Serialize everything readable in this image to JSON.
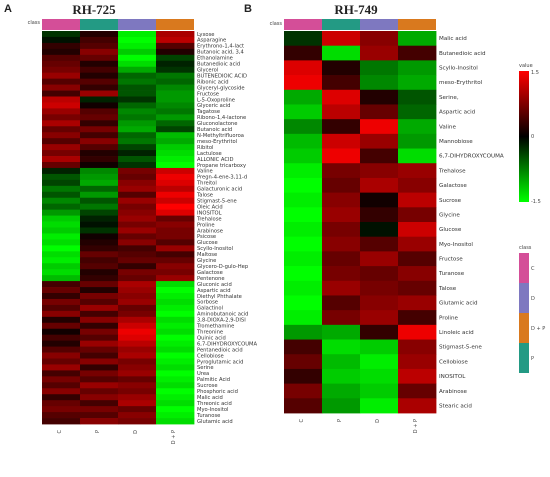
{
  "colors": {
    "low": "#00ff00",
    "mid": "#000000",
    "high": "#ff0000"
  },
  "legend": {
    "value_title": "value",
    "value_ticks": [
      "1.5",
      "0",
      "-1.5"
    ],
    "class_title": "class",
    "class_items": [
      {
        "label": "C",
        "color": "#d44e98"
      },
      {
        "label": "D",
        "color": "#7e78c0"
      },
      {
        "label": "D + P",
        "color": "#d9791e"
      },
      {
        "label": "P",
        "color": "#239a84"
      }
    ]
  },
  "chart_data": [
    {
      "type": "heatmap",
      "panel": "A",
      "title": "RH-725",
      "class_label": "class",
      "columns": [
        "C",
        "P",
        "D",
        "D + P"
      ],
      "column_colors": [
        "#d44e98",
        "#239a84",
        "#7e78c0",
        "#d9791e"
      ],
      "vmin": -1.5,
      "vmax": 1.5,
      "rows": [
        {
          "name": "Lyxose",
          "values": [
            -0.3,
            0.2,
            -1.4,
            1.0
          ]
        },
        {
          "name": "Asparagine",
          "values": [
            -0.1,
            0.4,
            -1.5,
            1.1
          ]
        },
        {
          "name": "Erythrono-1,4-lact",
          "values": [
            0.3,
            0.5,
            -1.4,
            0.5
          ]
        },
        {
          "name": "Butanoic acid, 3,4",
          "values": [
            0.2,
            0.8,
            -1.2,
            0.2
          ]
        },
        {
          "name": "Ethanolamine",
          "values": [
            0.5,
            0.6,
            -1.5,
            -0.4
          ]
        },
        {
          "name": "Butanedioic acid",
          "values": [
            0.6,
            0.2,
            -1.3,
            -0.2
          ]
        },
        {
          "name": "Glycerol",
          "values": [
            0.7,
            0.4,
            -1.0,
            -0.3
          ]
        },
        {
          "name": "BUTENEDIOIC ACID",
          "values": [
            0.9,
            0.2,
            -0.6,
            -0.7
          ]
        },
        {
          "name": "Ribonic acid",
          "values": [
            0.5,
            0.5,
            -0.7,
            -0.6
          ]
        },
        {
          "name": "Glyceryl-glycoside",
          "values": [
            0.8,
            0.3,
            -0.5,
            -0.8
          ]
        },
        {
          "name": "Fructose",
          "values": [
            0.4,
            0.9,
            -0.5,
            -0.9
          ]
        },
        {
          "name": "L-5-Oxoproline",
          "values": [
            1.1,
            -0.2,
            -0.3,
            -0.9
          ]
        },
        {
          "name": "Glyceric acid",
          "values": [
            1.2,
            0.1,
            -0.6,
            -0.8
          ]
        },
        {
          "name": "Tagatose",
          "values": [
            0.9,
            0.5,
            -0.8,
            -0.7
          ]
        },
        {
          "name": "Ribono-1,4-lactone",
          "values": [
            0.7,
            0.6,
            -0.7,
            -0.9
          ]
        },
        {
          "name": "Gluconolactone",
          "values": [
            1.0,
            0.3,
            -0.9,
            -0.6
          ]
        },
        {
          "name": "Butanoic acid",
          "values": [
            0.6,
            0.7,
            -1.0,
            -0.4
          ]
        },
        {
          "name": "N-Methyltrifluoroa",
          "values": [
            0.8,
            0.4,
            -0.6,
            -1.1
          ]
        },
        {
          "name": "meso-Erythritol",
          "values": [
            0.5,
            0.8,
            -0.7,
            -1.0
          ]
        },
        {
          "name": "Ribitol",
          "values": [
            0.9,
            0.5,
            -0.4,
            -1.2
          ]
        },
        {
          "name": "Lactulose",
          "values": [
            0.7,
            0.2,
            -0.2,
            -1.3
          ]
        },
        {
          "name": "ALLONIC ACID",
          "values": [
            1.0,
            0.3,
            -0.5,
            -1.4
          ]
        },
        {
          "name": "Propane tricarboxy",
          "values": [
            0.6,
            0.1,
            -0.3,
            -1.5
          ]
        },
        {
          "name": "Valine",
          "values": [
            -0.2,
            -0.8,
            0.7,
            1.2
          ]
        },
        {
          "name": "Pregn-4-ene-3,11-d",
          "values": [
            -0.5,
            -0.9,
            0.6,
            1.4
          ]
        },
        {
          "name": "Threitol",
          "values": [
            -0.4,
            -1.0,
            0.8,
            1.3
          ]
        },
        {
          "name": "Galacturonic acid",
          "values": [
            -0.7,
            -0.6,
            0.9,
            1.1
          ]
        },
        {
          "name": "Talose",
          "values": [
            -0.5,
            -0.9,
            0.5,
            1.4
          ]
        },
        {
          "name": "Stigmast-5-ene",
          "values": [
            -0.8,
            -0.5,
            0.9,
            1.2
          ]
        },
        {
          "name": "Oleic Acid",
          "values": [
            -0.6,
            -0.7,
            0.7,
            1.5
          ]
        },
        {
          "name": "INOSITOL",
          "values": [
            -0.9,
            -0.4,
            0.8,
            1.3
          ]
        },
        {
          "name": "Trehalose",
          "values": [
            -1.2,
            -0.2,
            0.9,
            0.6
          ]
        },
        {
          "name": "Proline",
          "values": [
            -1.3,
            -0.1,
            0.7,
            0.8
          ]
        },
        {
          "name": "Arabinose",
          "values": [
            -1.2,
            -0.3,
            0.9,
            0.7
          ]
        },
        {
          "name": "Psicose",
          "values": [
            -1.4,
            0.1,
            0.6,
            0.7
          ]
        },
        {
          "name": "Glucose",
          "values": [
            -1.3,
            0.2,
            0.8,
            0.5
          ]
        },
        {
          "name": "Scyllo-Inositol",
          "values": [
            -1.5,
            0.3,
            0.4,
            0.9
          ]
        },
        {
          "name": "Maltose",
          "values": [
            -1.3,
            0.6,
            0.5,
            0.4
          ]
        },
        {
          "name": "Glycine",
          "values": [
            -1.4,
            0.4,
            0.6,
            0.6
          ]
        },
        {
          "name": "Glycero-D-gulo-Hep",
          "values": [
            -1.2,
            0.5,
            0.3,
            0.8
          ]
        },
        {
          "name": "Galactose",
          "values": [
            -1.3,
            0.2,
            0.7,
            0.7
          ]
        },
        {
          "name": "Pentenone",
          "values": [
            -1.1,
            0.3,
            0.6,
            0.9
          ]
        },
        {
          "name": "Gluconic acid",
          "values": [
            0.4,
            0.6,
            1.0,
            -1.3
          ]
        },
        {
          "name": "Aspartic acid",
          "values": [
            0.6,
            0.2,
            0.9,
            -1.5
          ]
        },
        {
          "name": "Diethyl Phthalate",
          "values": [
            0.3,
            0.7,
            0.8,
            -1.4
          ]
        },
        {
          "name": "Sorbose",
          "values": [
            0.7,
            0.5,
            0.9,
            -1.3
          ]
        },
        {
          "name": "Galactinol",
          "values": [
            0.5,
            0.9,
            0.6,
            -1.4
          ]
        },
        {
          "name": "Aminobutanoic acid",
          "values": [
            0.8,
            0.4,
            0.7,
            -1.5
          ]
        },
        {
          "name": "3,8-DIOXA-2,9-DISI",
          "values": [
            0.2,
            0.8,
            1.0,
            -1.3
          ]
        },
        {
          "name": "Tromethamine",
          "values": [
            0.6,
            0.3,
            1.2,
            -1.4
          ]
        },
        {
          "name": "Threonine",
          "values": [
            0.1,
            0.7,
            1.4,
            -1.3
          ]
        },
        {
          "name": "Quinic acid",
          "values": [
            0.4,
            0.5,
            1.3,
            -1.5
          ]
        },
        {
          "name": "6,7-DIHYDROXYCOUMA",
          "values": [
            0.2,
            0.9,
            1.1,
            -1.4
          ]
        },
        {
          "name": "Pentanedioic acid",
          "values": [
            0.5,
            0.6,
            0.9,
            -1.3
          ]
        },
        {
          "name": "Cellobiose",
          "values": [
            0.8,
            0.4,
            1.0,
            -1.5
          ]
        },
        {
          "name": "Pyroglutamic acid",
          "values": [
            0.6,
            0.8,
            0.7,
            -1.4
          ]
        },
        {
          "name": "Serine",
          "values": [
            0.9,
            0.3,
            0.8,
            -1.3
          ]
        },
        {
          "name": "Urea",
          "values": [
            0.4,
            0.7,
            0.9,
            -1.5
          ]
        },
        {
          "name": "Palmitic Acid",
          "values": [
            0.7,
            0.5,
            0.6,
            -1.4
          ]
        },
        {
          "name": "Sucrose",
          "values": [
            0.5,
            0.9,
            0.8,
            -1.3
          ]
        },
        {
          "name": "Phosphoric acid",
          "values": [
            0.8,
            0.6,
            0.7,
            -1.5
          ]
        },
        {
          "name": "Malic acid",
          "values": [
            0.3,
            0.8,
            0.9,
            -1.4
          ]
        },
        {
          "name": "Threonic acid",
          "values": [
            0.6,
            0.4,
            1.0,
            -1.3
          ]
        },
        {
          "name": "Myo-Inositol",
          "values": [
            0.7,
            0.7,
            0.6,
            -1.5
          ]
        },
        {
          "name": "Turanose",
          "values": [
            0.5,
            0.5,
            0.8,
            -1.4
          ]
        },
        {
          "name": "Glutamic acid",
          "values": [
            0.4,
            0.8,
            0.7,
            -1.3
          ]
        }
      ]
    },
    {
      "type": "heatmap",
      "panel": "B",
      "title": "RH-749",
      "class_label": "class",
      "columns": [
        "C",
        "P",
        "D",
        "D + P"
      ],
      "column_colors": [
        "#d44e98",
        "#239a84",
        "#7e78c0",
        "#d9791e"
      ],
      "vmin": -1.5,
      "vmax": 1.5,
      "rows": [
        {
          "name": "Malic acid",
          "values": [
            -0.3,
            1.2,
            0.8,
            -1.0
          ]
        },
        {
          "name": "Butanedioic acid",
          "values": [
            0.3,
            -1.3,
            0.9,
            0.4
          ]
        },
        {
          "name": "Scyllo-Inositol",
          "values": [
            1.3,
            0.2,
            -0.7,
            -0.9
          ]
        },
        {
          "name": "meso-Erythritol",
          "values": [
            1.4,
            0.4,
            -0.8,
            -1.0
          ]
        },
        {
          "name": "Serine,",
          "values": [
            -1.0,
            1.3,
            0.2,
            -0.5
          ]
        },
        {
          "name": "Aspartic acid",
          "values": [
            -1.2,
            1.1,
            0.6,
            -0.6
          ]
        },
        {
          "name": "Valine",
          "values": [
            -0.8,
            0.3,
            1.4,
            -1.0
          ]
        },
        {
          "name": "Mannobiose",
          "values": [
            -1.1,
            1.2,
            0.9,
            -0.9
          ]
        },
        {
          "name": "6,7-DIHYDROXYCOUMA",
          "values": [
            -1.2,
            1.4,
            0.4,
            -1.3
          ]
        },
        {
          "name": "Trehalose",
          "values": [
            -1.4,
            0.7,
            0.8,
            0.9
          ]
        },
        {
          "name": "Galactose",
          "values": [
            -1.5,
            0.6,
            1.0,
            0.8
          ]
        },
        {
          "name": "Sucrose",
          "values": [
            -1.4,
            0.8,
            0.1,
            1.1
          ]
        },
        {
          "name": "Glycine",
          "values": [
            -1.5,
            0.9,
            0.3,
            0.7
          ]
        },
        {
          "name": "Glucose",
          "values": [
            -1.4,
            0.7,
            -0.1,
            1.2
          ]
        },
        {
          "name": "Myo-Inositol",
          "values": [
            -1.5,
            0.8,
            0.5,
            0.9
          ]
        },
        {
          "name": "Fructose",
          "values": [
            -1.4,
            0.6,
            0.9,
            0.5
          ]
        },
        {
          "name": "Turanose",
          "values": [
            -1.5,
            0.7,
            0.6,
            0.8
          ]
        },
        {
          "name": "Talose",
          "values": [
            -1.4,
            0.9,
            0.7,
            0.6
          ]
        },
        {
          "name": "Glutamic acid",
          "values": [
            -1.5,
            0.5,
            0.8,
            0.9
          ]
        },
        {
          "name": "Proline",
          "values": [
            -1.4,
            0.7,
            0.9,
            0.4
          ]
        },
        {
          "name": "Linoleic acid",
          "values": [
            -0.9,
            -1.0,
            0.3,
            1.4
          ]
        },
        {
          "name": "Stigmast-5-ene",
          "values": [
            0.4,
            -1.3,
            -1.2,
            0.8
          ]
        },
        {
          "name": "Cellobiose",
          "values": [
            0.6,
            -1.1,
            -1.4,
            0.9
          ]
        },
        {
          "name": "INOSITOL",
          "values": [
            0.3,
            -1.2,
            -1.3,
            1.1
          ]
        },
        {
          "name": "Arabinose",
          "values": [
            0.7,
            -1.0,
            -1.2,
            0.6
          ]
        },
        {
          "name": "Stearic acid",
          "values": [
            0.5,
            -0.9,
            -1.4,
            1.0
          ]
        }
      ]
    }
  ]
}
